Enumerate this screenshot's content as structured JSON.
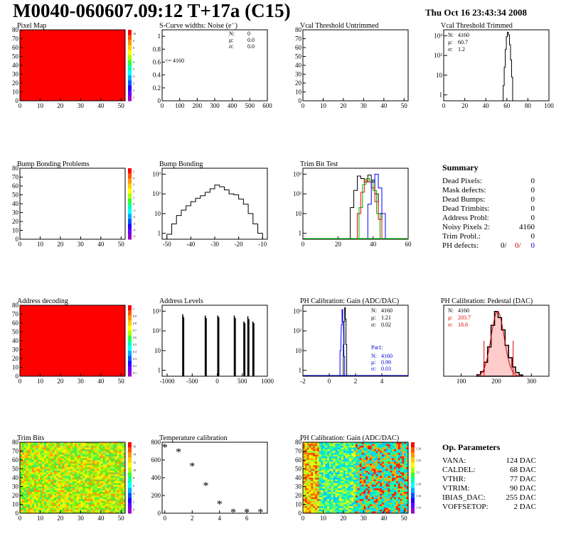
{
  "header": {
    "title": "M0040-060607.09:12 T+17a (C15)",
    "date": "Thu Oct 16 23:43:34 2008"
  },
  "panels": {
    "pixel_map": {
      "title": "Pixel Map",
      "xticks": [
        "0",
        "10",
        "20",
        "30",
        "40",
        "50"
      ],
      "yticks": [
        "0",
        "10",
        "20",
        "30",
        "40",
        "50",
        "60",
        "70",
        "80"
      ],
      "zticks": [
        "10",
        "9",
        "8",
        "7",
        "6",
        "5",
        "4",
        "3",
        "2",
        "1"
      ]
    },
    "scurve": {
      "title": "S-Curve widths: Noise (e⁻)",
      "xticks": [
        "0",
        "100",
        "200",
        "300",
        "400",
        "500",
        "600"
      ],
      "yticks": [
        "0",
        "0.2",
        "0.4",
        "0.6",
        "0.8",
        "1"
      ],
      "stats": [
        [
          "N:",
          "0"
        ],
        [
          "μ:",
          "0.0"
        ],
        [
          "σ:",
          "0.0"
        ]
      ],
      "note": "<= 4160"
    },
    "vcal_untrimmed": {
      "title": "Vcal Threshold Untrimmed",
      "xticks": [
        "0",
        "10",
        "20",
        "30",
        "40",
        "50"
      ],
      "yticks": [
        "0",
        "10",
        "20",
        "30",
        "40",
        "50",
        "60",
        "70",
        "80"
      ]
    },
    "vcal_trimmed": {
      "title": "Vcal Threshold Trimmed",
      "xticks": [
        "0",
        "20",
        "40",
        "60",
        "80",
        "100"
      ],
      "yticks": [
        "1",
        "10",
        "10²",
        "10³"
      ],
      "stats": [
        [
          "N:",
          "4160"
        ],
        [
          "μ:",
          "60.7"
        ],
        [
          "σ:",
          "1.2"
        ]
      ]
    },
    "bump_problems": {
      "title": "Bump Bonding Problems",
      "xticks": [
        "0",
        "10",
        "20",
        "30",
        "40",
        "50"
      ],
      "yticks": [
        "0",
        "10",
        "20",
        "30",
        "40",
        "50",
        "60",
        "70",
        "80"
      ],
      "zticks": [
        "5",
        "4",
        "3",
        "2",
        "1",
        "0",
        "-1",
        "-2",
        "-3",
        "-4",
        "-5"
      ]
    },
    "bump_bonding": {
      "title": "Bump Bonding",
      "xticks": [
        "-50",
        "-40",
        "-30",
        "-20",
        "-10"
      ],
      "yticks": [
        "1",
        "10",
        "10²",
        "10³"
      ]
    },
    "trim_bit_test": {
      "title": "Trim Bit Test",
      "xticks": [
        "0",
        "20",
        "40",
        "60"
      ],
      "yticks": [
        "1",
        "10",
        "10²",
        "10³"
      ]
    },
    "address_decoding": {
      "title": "Address decoding",
      "xticks": [
        "0",
        "10",
        "20",
        "30",
        "40",
        "50"
      ],
      "yticks": [
        "0",
        "10",
        "20",
        "30",
        "40",
        "50",
        "60",
        "70",
        "80"
      ],
      "zticks": [
        "1",
        "0.9",
        "0.8",
        "0.7",
        "0.6",
        "0.5",
        "0.4",
        "0.3",
        "0.2",
        "0.1"
      ]
    },
    "address_levels": {
      "title": "Address Levels",
      "xticks": [
        "-1000",
        "-500",
        "0",
        "500",
        "1000"
      ],
      "yticks": [
        "1",
        "10",
        "10²",
        "10³"
      ]
    },
    "ph_gain": {
      "title": "PH Calibration: Gain (ADC/DAC)",
      "xticks": [
        "-2",
        "0",
        "2",
        "4"
      ],
      "yticks": [
        "1",
        "10",
        "10²",
        "10³"
      ],
      "stats": [
        [
          "N:",
          "4160"
        ],
        [
          "μ:",
          "1.21"
        ],
        [
          "σ:",
          "0.02"
        ]
      ],
      "par": {
        "label": "Par1:",
        "stats": [
          [
            "N:",
            "4160"
          ],
          [
            "μ:",
            "0.99"
          ],
          [
            "σ:",
            "0.03"
          ]
        ]
      }
    },
    "ph_pedestal": {
      "title": "PH Calibration: Pedestal (DAC)",
      "xticks": [
        "100",
        "200",
        "300"
      ],
      "stats": [
        [
          "N:",
          "4160"
        ],
        [
          "μ:",
          "203.7"
        ],
        [
          "σ:",
          "18.6"
        ]
      ]
    },
    "trim_bits": {
      "title": "Trim Bits",
      "xticks": [
        "0",
        "10",
        "20",
        "30",
        "40",
        "50"
      ],
      "yticks": [
        "0",
        "10",
        "20",
        "30",
        "40",
        "50",
        "60",
        "70",
        "80"
      ],
      "zticks": [
        "16",
        "14",
        "12",
        "10",
        "8",
        "6",
        "4",
        "2",
        "0"
      ]
    },
    "temperature": {
      "title": "Temperature calibration",
      "xticks": [
        "0",
        "2",
        "4",
        "6"
      ],
      "yticks": [
        "0",
        "200",
        "400",
        "600",
        "800"
      ]
    },
    "ph_gain_map": {
      "title": "PH Calibration: Gain (ADC/DAC)",
      "xticks": [
        "0",
        "10",
        "20",
        "30",
        "40",
        "50"
      ],
      "yticks": [
        "0",
        "10",
        "20",
        "30",
        "40",
        "50",
        "60",
        "70",
        "80"
      ],
      "zticks": [
        "1.24",
        "1.22",
        "1.2",
        "1.18",
        "1.16",
        "1.14"
      ]
    }
  },
  "summary": {
    "title": "Summary",
    "rows": [
      {
        "label": "Dead Pixels:",
        "value": "0"
      },
      {
        "label": "Mask defects:",
        "value": "0"
      },
      {
        "label": "Dead Bumps:",
        "value": "0"
      },
      {
        "label": "Dead Trimbits:",
        "value": "0"
      },
      {
        "label": "Address Probl:",
        "value": "0"
      },
      {
        "label": "Noisy Pixels 2:",
        "value": "4160"
      },
      {
        "label": "Trim Probl.:",
        "value": "0"
      }
    ],
    "ph_defects": {
      "label": "PH defects:",
      "v1": "0/",
      "v2": "0/",
      "v3": "0"
    }
  },
  "op_params": {
    "title": "Op. Parameters",
    "rows": [
      {
        "label": "VANA:",
        "value": "124 DAC"
      },
      {
        "label": "CALDEL:",
        "value": "68 DAC"
      },
      {
        "label": "VTHR:",
        "value": "77 DAC"
      },
      {
        "label": "VTRIM:",
        "value": "90 DAC"
      },
      {
        "label": "IBIAS_DAC:",
        "value": "255 DAC"
      },
      {
        "label": "VOFFSETOP:",
        "value": "2 DAC"
      }
    ]
  },
  "chart_data": [
    {
      "type": "heatmap",
      "title": "Pixel Map",
      "xlim": [
        0,
        52
      ],
      "ylim": [
        0,
        80
      ],
      "fill": "uniform-max",
      "color": "#ff0000"
    },
    {
      "type": "bar",
      "title": "S-Curve widths: Noise (e⁻)",
      "xlim": [
        0,
        600
      ],
      "ylim": [
        0,
        1
      ],
      "values": []
    },
    {
      "type": "bar",
      "title": "Vcal Threshold Untrimmed",
      "xlim": [
        0,
        52
      ],
      "ylim": [
        0,
        80
      ],
      "values": []
    },
    {
      "type": "bar",
      "title": "Vcal Threshold Trimmed",
      "xlim": [
        0,
        100
      ],
      "log_y": true,
      "x": [
        57,
        58,
        59,
        60,
        61,
        62,
        63,
        64,
        65
      ],
      "values": [
        3,
        25,
        200,
        900,
        1500,
        1100,
        350,
        60,
        8
      ]
    },
    {
      "type": "heatmap",
      "title": "Bump Bonding Problems",
      "xlim": [
        0,
        52
      ],
      "ylim": [
        0,
        80
      ],
      "fill": "empty"
    },
    {
      "type": "line",
      "title": "Bump Bonding",
      "xlim": [
        -52,
        -8
      ],
      "log_y": true,
      "x": [
        -49,
        -47,
        -45,
        -43,
        -41,
        -39,
        -37,
        -35,
        -33,
        -31,
        -29,
        -27,
        -25,
        -23,
        -21,
        -19,
        -17,
        -15,
        -13,
        -11
      ],
      "values": [
        0.9,
        3,
        8,
        15,
        25,
        40,
        60,
        80,
        120,
        180,
        280,
        230,
        160,
        100,
        90,
        55,
        30,
        10,
        3,
        1
      ]
    },
    {
      "type": "line",
      "title": "Trim Bit Test",
      "xlim": [
        0,
        60
      ],
      "log_y": true,
      "series": [
        {
          "color": "#000000",
          "x": [
            28,
            30,
            32,
            34,
            36,
            38,
            40,
            42,
            44
          ],
          "values": [
            20,
            150,
            800,
            600,
            400,
            900,
            500,
            100,
            10
          ]
        },
        {
          "color": "#ff0000",
          "x": [
            32,
            34,
            36,
            38,
            40,
            42,
            44
          ],
          "values": [
            10,
            120,
            500,
            400,
            200,
            40,
            5
          ]
        },
        {
          "color": "#00aa00",
          "x": [
            33,
            35,
            37,
            39,
            41,
            43
          ],
          "values": [
            20,
            300,
            600,
            450,
            150,
            10
          ]
        },
        {
          "color": "#0000ff",
          "x": [
            38,
            40,
            42,
            44,
            46
          ],
          "values": [
            30,
            400,
            1000,
            200,
            10
          ]
        }
      ]
    },
    {
      "type": "heatmap",
      "title": "Address decoding",
      "xlim": [
        0,
        52
      ],
      "ylim": [
        0,
        80
      ],
      "fill": "uniform-max",
      "color": "#ff0000"
    },
    {
      "type": "bar",
      "title": "Address Levels",
      "xlim": [
        -1100,
        1000
      ],
      "log_y": true,
      "x": [
        -700,
        -680,
        -250,
        -230,
        0,
        20,
        330,
        350,
        520,
        540,
        600,
        620,
        700,
        720
      ],
      "values": [
        700,
        500,
        600,
        450,
        600,
        500,
        600,
        450,
        300,
        250,
        550,
        400,
        300,
        250
      ]
    },
    {
      "type": "line",
      "title": "PH Calibration: Gain (ADC/DAC)",
      "xlim": [
        -2,
        6
      ],
      "log_y": true,
      "series": [
        {
          "color": "#000000",
          "x": [
            1.1,
            1.15,
            1.2,
            1.25,
            1.3
          ],
          "values": [
            20,
            300,
            1500,
            400,
            20
          ]
        },
        {
          "color": "#0000ff",
          "x": [
            0.85,
            0.95,
            1.0,
            1.05,
            1.15
          ],
          "values": [
            10,
            200,
            1200,
            300,
            5
          ]
        }
      ]
    },
    {
      "type": "bar",
      "title": "PH Calibration: Pedestal (DAC)",
      "xlim": [
        50,
        350
      ],
      "x": [
        150,
        160,
        170,
        180,
        190,
        200,
        210,
        220,
        230,
        240,
        250,
        260,
        270
      ],
      "values": [
        5,
        15,
        45,
        95,
        165,
        210,
        190,
        150,
        100,
        60,
        30,
        12,
        4
      ]
    },
    {
      "type": "heatmap",
      "title": "Trim Bits",
      "xlim": [
        0,
        52
      ],
      "ylim": [
        0,
        80
      ],
      "zlim": [
        0,
        16
      ]
    },
    {
      "type": "scatter",
      "title": "Temperature calibration",
      "xlim": [
        -0.2,
        7.5
      ],
      "ylim": [
        0,
        800
      ],
      "x": [
        0,
        1,
        2,
        3,
        4,
        5,
        6,
        7
      ],
      "values": [
        740,
        690,
        530,
        310,
        100,
        10,
        10,
        10
      ]
    },
    {
      "type": "heatmap",
      "title": "PH Calibration: Gain (ADC/DAC)",
      "xlim": [
        0,
        52
      ],
      "ylim": [
        0,
        80
      ],
      "zlim": [
        1.13,
        1.25
      ]
    }
  ]
}
